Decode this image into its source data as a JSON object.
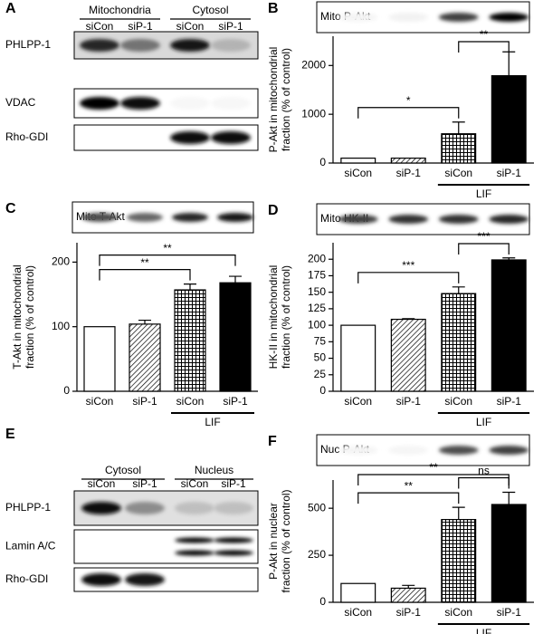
{
  "blots": [
    {
      "panel": "A",
      "groups": [
        {
          "name": "Mitochondria",
          "lanes": [
            "siCon",
            "siP-1"
          ]
        },
        {
          "name": "Cytosol",
          "lanes": [
            "siCon",
            "siP-1"
          ]
        }
      ],
      "rows": [
        "PHLPP-1",
        "VDAC",
        "Rho-GDI"
      ]
    },
    {
      "panel": "E",
      "groups": [
        {
          "name": "Cytosol",
          "lanes": [
            "siCon",
            "siP-1"
          ]
        },
        {
          "name": "Nucleus",
          "lanes": [
            "siCon",
            "siP-1"
          ]
        }
      ],
      "rows": [
        "PHLPP-1",
        "Lamin A/C",
        "Rho-GDI"
      ]
    }
  ],
  "chart_data": [
    {
      "type": "bar",
      "panel": "B",
      "blot_label": "Mito P-Akt",
      "ylabel": [
        "P-Akt in mitochondrial",
        "fraction (% of control)"
      ],
      "categories": [
        "siCon",
        "siP-1",
        "siCon",
        "siP-1"
      ],
      "values": [
        100,
        100,
        600,
        1790
      ],
      "errors": [
        null,
        null,
        240,
        490
      ],
      "patterns": [
        "open",
        "diagonal",
        "grid",
        "solid"
      ],
      "group": {
        "label": "LIF",
        "categories": [
          2,
          3
        ]
      },
      "ylim": [
        0,
        2600
      ],
      "yticks": [
        0,
        1000,
        2000
      ],
      "significance": [
        {
          "label": "*",
          "between": [
            0,
            2
          ]
        },
        {
          "label": "**",
          "between": [
            2,
            3
          ]
        }
      ]
    },
    {
      "type": "bar",
      "panel": "C",
      "blot_label": "Mito T-Akt",
      "ylabel": [
        "T-Akt  in mitochondrial",
        "fraction (% of control)"
      ],
      "categories": [
        "siCon",
        "siP-1",
        "siCon",
        "siP-1"
      ],
      "values": [
        100,
        104,
        157,
        168
      ],
      "errors": [
        null,
        6,
        9,
        10
      ],
      "patterns": [
        "open",
        "diagonal",
        "grid",
        "solid"
      ],
      "group": {
        "label": "LIF",
        "categories": [
          2,
          3
        ]
      },
      "ylim": [
        0,
        230
      ],
      "yticks": [
        0,
        100,
        200
      ],
      "significance": [
        {
          "label": "**",
          "between": [
            0,
            2
          ]
        },
        {
          "label": "**",
          "between": [
            0,
            3
          ]
        }
      ]
    },
    {
      "type": "bar",
      "panel": "D",
      "blot_label": "Mito HK-II",
      "ylabel": [
        "HK-II in mitochondrial",
        "fraction (% of control)"
      ],
      "categories": [
        "siCon",
        "siP-1",
        "siCon",
        "siP-1"
      ],
      "values": [
        100,
        109,
        148,
        199
      ],
      "errors": [
        null,
        1,
        10,
        3
      ],
      "patterns": [
        "open",
        "diagonal",
        "grid",
        "solid"
      ],
      "group": {
        "label": "LIF",
        "categories": [
          2,
          3
        ]
      },
      "ylim": [
        0,
        225
      ],
      "yticks": [
        0,
        25,
        50,
        75,
        100,
        125,
        150,
        175,
        200
      ],
      "significance": [
        {
          "label": "***",
          "between": [
            0,
            2
          ]
        },
        {
          "label": "***",
          "between": [
            2,
            3
          ]
        }
      ]
    },
    {
      "type": "bar",
      "panel": "F",
      "blot_label": "Nuc P-Akt",
      "ylabel": [
        "P-Akt in nuclear",
        "fraction (% of control)"
      ],
      "categories": [
        "siCon",
        "siP-1",
        "siCon",
        "siP-1"
      ],
      "values": [
        100,
        75,
        440,
        520
      ],
      "errors": [
        null,
        15,
        65,
        65
      ],
      "patterns": [
        "open",
        "diagonal",
        "grid",
        "solid"
      ],
      "group": {
        "label": "LIF",
        "categories": [
          2,
          3
        ]
      },
      "ylim": [
        0,
        650
      ],
      "yticks": [
        0,
        250,
        500
      ],
      "significance": [
        {
          "label": "**",
          "between": [
            0,
            2
          ]
        },
        {
          "label": "ns",
          "between": [
            2,
            3
          ]
        },
        {
          "label": "**",
          "between": [
            0,
            3
          ]
        }
      ]
    }
  ]
}
